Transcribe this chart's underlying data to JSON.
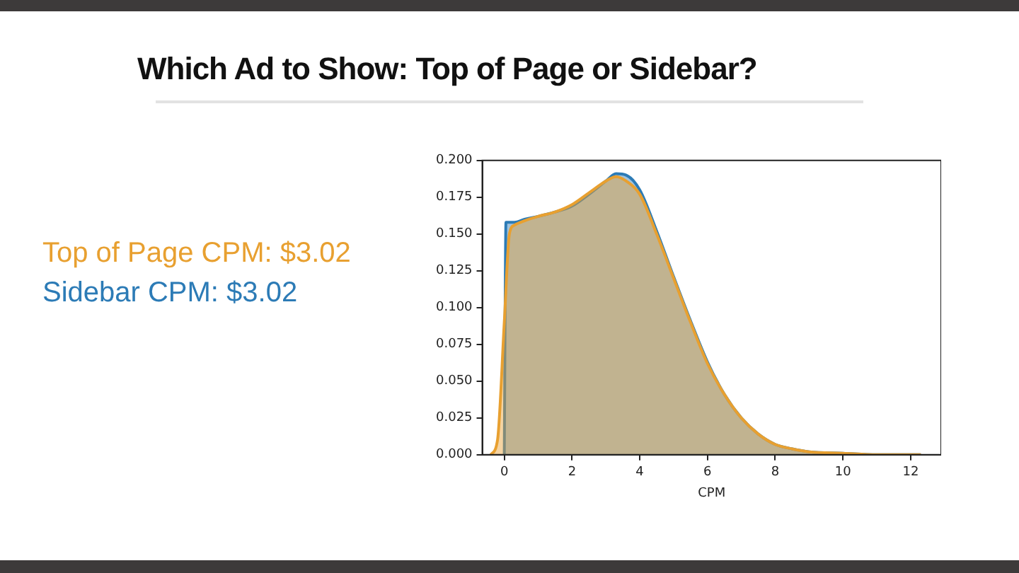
{
  "chart_data": {
    "type": "area",
    "title": "Which Ad to Show: Top of Page or Sidebar?",
    "xlabel": "CPM",
    "legend": "left",
    "grid": false,
    "marker": "none",
    "xlim": [
      -0.65,
      12.9
    ],
    "xticks": [
      0,
      2,
      4,
      6,
      8,
      10,
      12
    ],
    "ylim": [
      0,
      0.2
    ],
    "yticks": [
      {
        "value": 0,
        "label": "0.000"
      },
      {
        "value": 0.025,
        "label": "0.025"
      },
      {
        "value": 0.05,
        "label": "0.050"
      },
      {
        "value": 0.075,
        "label": "0.075"
      },
      {
        "value": 0.1,
        "label": "0.100"
      },
      {
        "value": 0.125,
        "label": "0.125"
      },
      {
        "value": 0.15,
        "label": "0.150"
      },
      {
        "value": 0.175,
        "label": "0.175"
      },
      {
        "value": 0.2,
        "label": "0.200"
      }
    ],
    "series": [
      {
        "name": "Top of Page CPM: $3.02",
        "color": "#e8a030",
        "x": [
          -0.4,
          -0.2,
          0,
          0.15,
          0.3,
          0.6,
          1,
          1.5,
          2,
          2.5,
          3,
          3.3,
          3.6,
          4,
          4.5,
          5,
          5.5,
          6,
          6.5,
          7,
          7.5,
          8,
          8.5,
          9,
          10,
          11,
          12.3
        ],
        "values": [
          0,
          0.01,
          0.09,
          0.15,
          0.156,
          0.159,
          0.162,
          0.165,
          0.17,
          0.178,
          0.186,
          0.189,
          0.186,
          0.177,
          0.15,
          0.12,
          0.09,
          0.062,
          0.041,
          0.025,
          0.014,
          0.007,
          0.004,
          0.002,
          0.001,
          0,
          0
        ]
      },
      {
        "name": "Sidebar CPM: $3.02",
        "color": "#2c7bb6",
        "x": [
          0,
          0.05,
          0.3,
          0.6,
          1,
          1.5,
          2,
          2.5,
          3,
          3.3,
          3.6,
          4,
          4.5,
          5,
          5.5,
          6,
          6.5,
          7,
          7.5,
          8,
          8.5,
          9,
          10,
          11,
          12.3
        ],
        "values": [
          0,
          0.158,
          0.158,
          0.16,
          0.162,
          0.165,
          0.169,
          0.177,
          0.186,
          0.191,
          0.19,
          0.18,
          0.152,
          0.121,
          0.091,
          0.063,
          0.041,
          0.025,
          0.014,
          0.007,
          0.004,
          0.002,
          0.001,
          0,
          0
        ]
      }
    ]
  }
}
